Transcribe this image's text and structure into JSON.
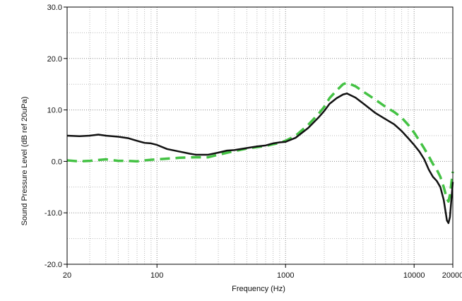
{
  "chart_data": {
    "type": "line",
    "title": "",
    "xlabel": "Frequency (Hz)",
    "ylabel": "Sound Pressure Level (dB ref 20uPa)",
    "x_scale": "log",
    "xlim": [
      20,
      20000
    ],
    "ylim": [
      -20,
      30
    ],
    "x_ticks": [
      {
        "value": 20,
        "label": "20"
      },
      {
        "value": 100,
        "label": "100"
      },
      {
        "value": 1000,
        "label": "1000"
      },
      {
        "value": 10000,
        "label": "10000"
      },
      {
        "value": 20000,
        "label": "20000"
      }
    ],
    "y_ticks": [
      {
        "value": 30,
        "label": "30.0"
      },
      {
        "value": 20,
        "label": "20.0"
      },
      {
        "value": 10,
        "label": "10.0"
      },
      {
        "value": 0,
        "label": "0.0"
      },
      {
        "value": -10,
        "label": "-10.0"
      },
      {
        "value": -20,
        "label": "-20.0"
      }
    ],
    "grid": true,
    "legend": "none",
    "series": [
      {
        "color": "#111111",
        "style": "solid",
        "points": [
          [
            20,
            5.0
          ],
          [
            25,
            4.9
          ],
          [
            30,
            5.0
          ],
          [
            35,
            5.2
          ],
          [
            40,
            5.0
          ],
          [
            50,
            4.8
          ],
          [
            60,
            4.5
          ],
          [
            70,
            4.0
          ],
          [
            80,
            3.6
          ],
          [
            90,
            3.5
          ],
          [
            100,
            3.2
          ],
          [
            120,
            2.4
          ],
          [
            150,
            1.9
          ],
          [
            180,
            1.5
          ],
          [
            200,
            1.3
          ],
          [
            250,
            1.3
          ],
          [
            300,
            1.7
          ],
          [
            350,
            2.1
          ],
          [
            400,
            2.2
          ],
          [
            500,
            2.6
          ],
          [
            600,
            2.9
          ],
          [
            700,
            3.1
          ],
          [
            800,
            3.5
          ],
          [
            900,
            3.7
          ],
          [
            1000,
            3.8
          ],
          [
            1200,
            4.6
          ],
          [
            1500,
            6.5
          ],
          [
            1800,
            8.5
          ],
          [
            2000,
            9.8
          ],
          [
            2200,
            11.2
          ],
          [
            2500,
            12.3
          ],
          [
            2800,
            13.0
          ],
          [
            3000,
            13.2
          ],
          [
            3500,
            12.4
          ],
          [
            4000,
            11.3
          ],
          [
            5000,
            9.4
          ],
          [
            6000,
            8.2
          ],
          [
            7000,
            7.2
          ],
          [
            8000,
            5.9
          ],
          [
            9000,
            4.5
          ],
          [
            10000,
            3.2
          ],
          [
            11000,
            1.9
          ],
          [
            12000,
            0.4
          ],
          [
            13000,
            -1.6
          ],
          [
            14000,
            -3.0
          ],
          [
            15000,
            -3.8
          ],
          [
            16000,
            -5.0
          ],
          [
            17000,
            -7.5
          ],
          [
            18000,
            -11.5
          ],
          [
            18500,
            -12.0
          ],
          [
            19000,
            -10.8
          ],
          [
            20000,
            -4.0
          ]
        ]
      },
      {
        "color": "#44c244",
        "style": "dashed",
        "points": [
          [
            20,
            0.2
          ],
          [
            25,
            0.0
          ],
          [
            30,
            0.1
          ],
          [
            40,
            0.4
          ],
          [
            50,
            0.1
          ],
          [
            60,
            0.1
          ],
          [
            70,
            0.0
          ],
          [
            80,
            0.2
          ],
          [
            100,
            0.4
          ],
          [
            150,
            0.7
          ],
          [
            200,
            0.8
          ],
          [
            250,
            0.8
          ],
          [
            300,
            1.3
          ],
          [
            400,
            2.0
          ],
          [
            500,
            2.5
          ],
          [
            700,
            3.0
          ],
          [
            900,
            3.6
          ],
          [
            1000,
            4.0
          ],
          [
            1200,
            5.0
          ],
          [
            1500,
            7.1
          ],
          [
            1800,
            9.2
          ],
          [
            2000,
            10.6
          ],
          [
            2200,
            12.3
          ],
          [
            2500,
            13.8
          ],
          [
            2800,
            15.0
          ],
          [
            3000,
            15.3
          ],
          [
            3500,
            14.6
          ],
          [
            4000,
            13.6
          ],
          [
            5000,
            12.0
          ],
          [
            6000,
            10.6
          ],
          [
            7000,
            9.6
          ],
          [
            8000,
            8.5
          ],
          [
            9000,
            7.1
          ],
          [
            10000,
            5.6
          ],
          [
            11000,
            4.0
          ],
          [
            12000,
            2.5
          ],
          [
            13000,
            1.0
          ],
          [
            14000,
            -0.5
          ],
          [
            15000,
            -1.6
          ],
          [
            16000,
            -3.0
          ],
          [
            17000,
            -5.0
          ],
          [
            18000,
            -7.3
          ],
          [
            18500,
            -7.8
          ],
          [
            19000,
            -6.5
          ],
          [
            20000,
            -2.0
          ]
        ]
      }
    ]
  }
}
